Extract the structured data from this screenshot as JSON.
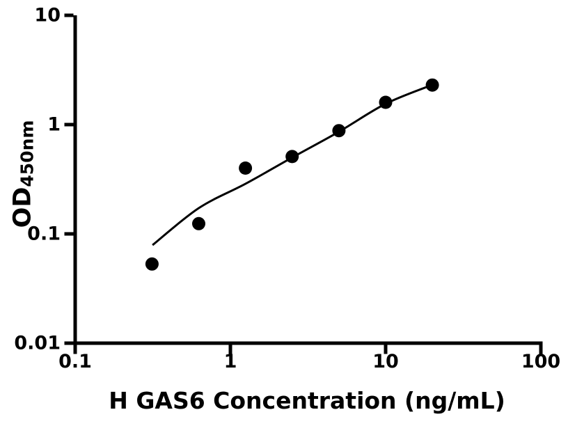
{
  "chart_data": {
    "type": "scatter",
    "title": "",
    "xlabel": "H GAS6 Concentration (ng/mL)",
    "ylabel": "OD",
    "ylabel_subscript": "450nm",
    "xscale": "log",
    "yscale": "log",
    "xlim": [
      0.1,
      100
    ],
    "ylim": [
      0.01,
      10
    ],
    "x_ticks": [
      0.1,
      1,
      10,
      100
    ],
    "x_tick_labels": [
      "0.1",
      "1",
      "10",
      "100"
    ],
    "y_ticks": [
      0.01,
      0.1,
      1,
      10
    ],
    "y_tick_labels": [
      "0.01",
      "0.1",
      "1",
      "10"
    ],
    "grid": false,
    "legend": null,
    "series": [
      {
        "name": "standard-points",
        "type": "scatter",
        "marker": "circle",
        "color": "#000000",
        "points": [
          {
            "x": 0.3125,
            "y": 0.053
          },
          {
            "x": 0.625,
            "y": 0.124
          },
          {
            "x": 1.25,
            "y": 0.4
          },
          {
            "x": 2.5,
            "y": 0.51
          },
          {
            "x": 5,
            "y": 0.88
          },
          {
            "x": 10,
            "y": 1.6
          },
          {
            "x": 20,
            "y": 2.3
          }
        ]
      },
      {
        "name": "fit-curve",
        "type": "line",
        "color": "#000000",
        "points": [
          {
            "x": 0.315,
            "y": 0.079
          },
          {
            "x": 0.625,
            "y": 0.172
          },
          {
            "x": 1.25,
            "y": 0.287
          },
          {
            "x": 2.5,
            "y": 0.5
          },
          {
            "x": 5,
            "y": 0.86
          },
          {
            "x": 10,
            "y": 1.55
          },
          {
            "x": 20,
            "y": 2.31
          }
        ]
      }
    ],
    "axis_color": "#000000",
    "background_color": "#ffffff"
  }
}
